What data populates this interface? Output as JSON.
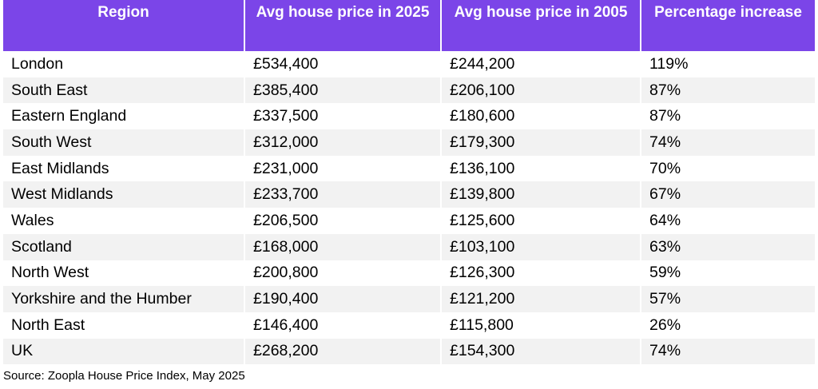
{
  "table": {
    "headers": [
      "Region",
      "Avg house price in 2025",
      "Avg house price in 2005",
      "Percentage increase"
    ],
    "rows": [
      [
        "London",
        "£534,400",
        "£244,200",
        "119%"
      ],
      [
        "South East",
        "£385,400",
        "£206,100",
        "87%"
      ],
      [
        "Eastern England",
        "£337,500",
        "£180,600",
        "87%"
      ],
      [
        "South West",
        "£312,000",
        "£179,300",
        "74%"
      ],
      [
        "East Midlands",
        "£231,000",
        "£136,100",
        "70%"
      ],
      [
        "West Midlands",
        "£233,700",
        "£139,800",
        "67%"
      ],
      [
        "Wales",
        "£206,500",
        "£125,600",
        "64%"
      ],
      [
        "Scotland",
        "£168,000",
        "£103,100",
        "63%"
      ],
      [
        "North West",
        "£200,800",
        "£126,300",
        "59%"
      ],
      [
        "Yorkshire and the Humber",
        "£190,400",
        "£121,200",
        "57%"
      ],
      [
        "North East",
        "£146,400",
        "£115,800",
        "26%"
      ],
      [
        "UK",
        "£268,200",
        "£154,300",
        "74%"
      ]
    ]
  },
  "source": "Source: Zoopla House Price Index, May 2025",
  "colors": {
    "header_bg": "#7b45e8",
    "header_text": "#ffffff",
    "row_alt_bg": "#f2f2f2"
  }
}
